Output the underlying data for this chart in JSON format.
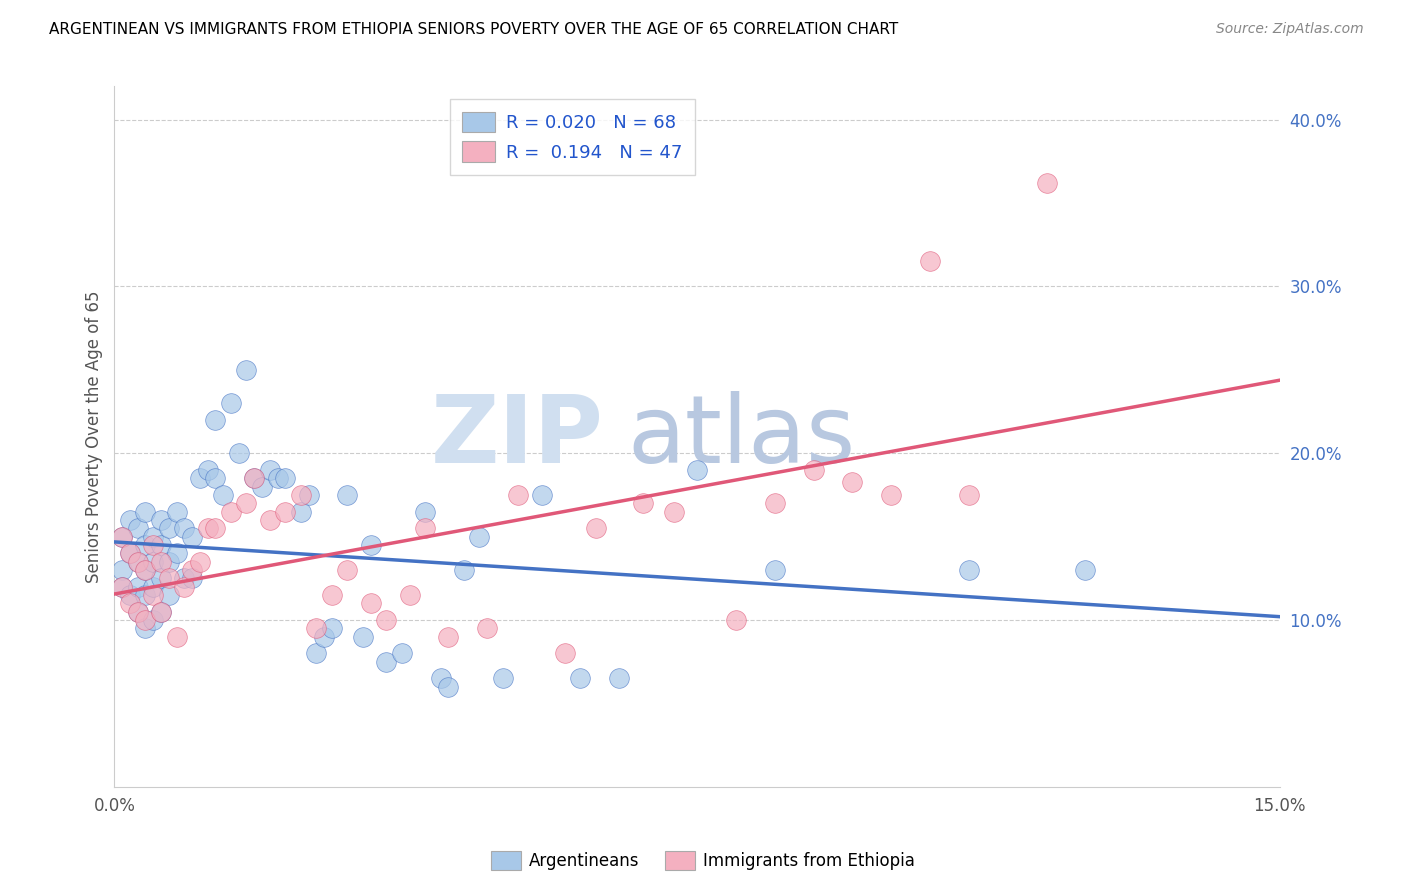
{
  "title": "ARGENTINEAN VS IMMIGRANTS FROM ETHIOPIA SENIORS POVERTY OVER THE AGE OF 65 CORRELATION CHART",
  "source_text": "Source: ZipAtlas.com",
  "ylabel": "Seniors Poverty Over the Age of 65",
  "xmin": 0.0,
  "xmax": 0.15,
  "ymin": 0.0,
  "ymax": 0.42,
  "right_yticks": [
    0.1,
    0.2,
    0.3,
    0.4
  ],
  "right_yticklabels": [
    "10.0%",
    "20.0%",
    "30.0%",
    "40.0%"
  ],
  "xticks": [
    0.0,
    0.025,
    0.05,
    0.075,
    0.1,
    0.125,
    0.15
  ],
  "xticklabels": [
    "0.0%",
    "",
    "",
    "",
    "",
    "",
    "15.0%"
  ],
  "legend_r_blue": "0.020",
  "legend_n_blue": "68",
  "legend_r_pink": "0.194",
  "legend_n_pink": "47",
  "blue_color": "#a8c8e8",
  "pink_color": "#f4b0c0",
  "line_blue_color": "#4472c4",
  "line_pink_color": "#e05878",
  "watermark_zip": "ZIP",
  "watermark_atlas": "atlas",
  "watermark_color": "#d0dff0",
  "blue_scatter_x": [
    0.001,
    0.001,
    0.001,
    0.002,
    0.002,
    0.002,
    0.003,
    0.003,
    0.003,
    0.003,
    0.004,
    0.004,
    0.004,
    0.004,
    0.004,
    0.005,
    0.005,
    0.005,
    0.005,
    0.006,
    0.006,
    0.006,
    0.006,
    0.007,
    0.007,
    0.007,
    0.008,
    0.008,
    0.009,
    0.009,
    0.01,
    0.01,
    0.011,
    0.012,
    0.013,
    0.013,
    0.014,
    0.015,
    0.016,
    0.017,
    0.018,
    0.019,
    0.02,
    0.021,
    0.022,
    0.024,
    0.025,
    0.026,
    0.027,
    0.028,
    0.03,
    0.032,
    0.033,
    0.035,
    0.037,
    0.04,
    0.042,
    0.043,
    0.045,
    0.047,
    0.05,
    0.055,
    0.06,
    0.065,
    0.075,
    0.085,
    0.11,
    0.125
  ],
  "blue_scatter_y": [
    0.15,
    0.13,
    0.12,
    0.16,
    0.14,
    0.115,
    0.155,
    0.135,
    0.12,
    0.105,
    0.165,
    0.145,
    0.13,
    0.115,
    0.095,
    0.15,
    0.135,
    0.12,
    0.1,
    0.16,
    0.145,
    0.125,
    0.105,
    0.155,
    0.135,
    0.115,
    0.165,
    0.14,
    0.155,
    0.125,
    0.15,
    0.125,
    0.185,
    0.19,
    0.22,
    0.185,
    0.175,
    0.23,
    0.2,
    0.25,
    0.185,
    0.18,
    0.19,
    0.185,
    0.185,
    0.165,
    0.175,
    0.08,
    0.09,
    0.095,
    0.175,
    0.09,
    0.145,
    0.075,
    0.08,
    0.165,
    0.065,
    0.06,
    0.13,
    0.15,
    0.065,
    0.175,
    0.065,
    0.065,
    0.19,
    0.13,
    0.13,
    0.13
  ],
  "pink_scatter_x": [
    0.001,
    0.001,
    0.002,
    0.002,
    0.003,
    0.003,
    0.004,
    0.004,
    0.005,
    0.005,
    0.006,
    0.006,
    0.007,
    0.008,
    0.009,
    0.01,
    0.011,
    0.012,
    0.013,
    0.015,
    0.017,
    0.018,
    0.02,
    0.022,
    0.024,
    0.026,
    0.028,
    0.03,
    0.033,
    0.035,
    0.038,
    0.04,
    0.043,
    0.048,
    0.052,
    0.058,
    0.062,
    0.068,
    0.072,
    0.08,
    0.085,
    0.09,
    0.095,
    0.1,
    0.105,
    0.11,
    0.12
  ],
  "pink_scatter_y": [
    0.15,
    0.12,
    0.14,
    0.11,
    0.135,
    0.105,
    0.13,
    0.1,
    0.145,
    0.115,
    0.135,
    0.105,
    0.125,
    0.09,
    0.12,
    0.13,
    0.135,
    0.155,
    0.155,
    0.165,
    0.17,
    0.185,
    0.16,
    0.165,
    0.175,
    0.095,
    0.115,
    0.13,
    0.11,
    0.1,
    0.115,
    0.155,
    0.09,
    0.095,
    0.175,
    0.08,
    0.155,
    0.17,
    0.165,
    0.1,
    0.17,
    0.19,
    0.183,
    0.175,
    0.315,
    0.175,
    0.362
  ]
}
